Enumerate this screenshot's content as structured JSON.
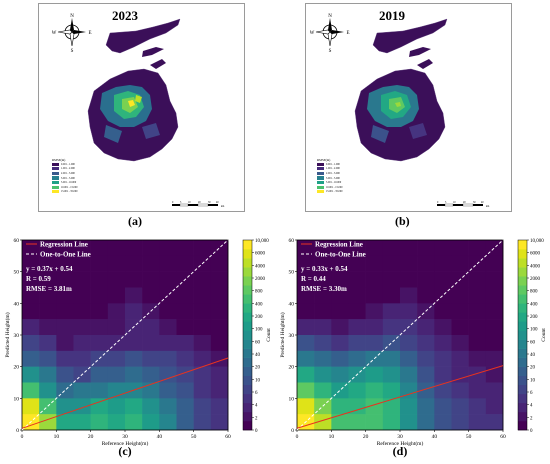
{
  "maps": [
    {
      "year": "2023",
      "label": "(a)",
      "legend_title": "RMSE(m)",
      "legend_items": [
        "0.001 - 1.000",
        "1.001 - 2.000",
        "2.001 - 3.000",
        "3.001 - 5.000",
        "5.001 - 10.000",
        "10.001 - 15.000",
        "15.001 - 35.000"
      ],
      "legend_colors": [
        "#3b0f59",
        "#452a7a",
        "#3a5a8c",
        "#27808e",
        "#1fa187",
        "#4ac16d",
        "#fde725"
      ],
      "scalebar_ticks": [
        "0",
        "5",
        "10",
        "20",
        "30",
        "40"
      ],
      "scalebar_unit": "km"
    },
    {
      "year": "2019",
      "label": "(b)",
      "legend_title": "RMSE(m)",
      "legend_items": [
        "0.001 - 1.000",
        "1.001 - 2.000",
        "2.001 - 3.000",
        "3.001 - 5.000",
        "5.001 - 10.000",
        "10.001 - 15.000",
        "15.001 - 35.000"
      ],
      "legend_colors": [
        "#3b0f59",
        "#452a7a",
        "#3a5a8c",
        "#27808e",
        "#1fa187",
        "#4ac16d",
        "#fde725"
      ],
      "scalebar_ticks": [
        "0",
        "5",
        "10",
        "20",
        "30",
        "40"
      ],
      "scalebar_unit": "km"
    }
  ],
  "compass": {
    "n": "N",
    "s": "S",
    "e": "E",
    "w": "W"
  },
  "colorbar": {
    "label": "Count",
    "ticks": [
      "10,000",
      "6000",
      "4000",
      "2000",
      "800",
      "400",
      "200",
      "100",
      "60",
      "40",
      "20",
      "10",
      "6",
      "4",
      "2",
      "0"
    ],
    "colors": [
      "#440154",
      "#471365",
      "#482475",
      "#463480",
      "#414487",
      "#3b528b",
      "#355f8d",
      "#2f6c8e",
      "#2a788e",
      "#25858e",
      "#21918c",
      "#1e9c89",
      "#22a884",
      "#2fb47c",
      "#44bf70",
      "#5ec962",
      "#7ad151",
      "#9bd93c",
      "#bddf26",
      "#dfe318",
      "#fde725"
    ]
  },
  "chart_data": [
    {
      "type": "heatmap",
      "panel_label": "(c)",
      "xlabel": "Reference Height(m)",
      "ylabel": "Predicted Height(m)",
      "xlim": [
        0,
        60
      ],
      "ylim": [
        0,
        60
      ],
      "xticks": [
        "0",
        "10",
        "20",
        "30",
        "40",
        "50",
        "60"
      ],
      "yticks": [
        "0",
        "10",
        "20",
        "30",
        "40",
        "50",
        "60"
      ],
      "legend": [
        "Regression Line",
        "One-to-One Line"
      ],
      "regression": {
        "slope": 0.37,
        "intercept": 0.54
      },
      "annotations": [
        "y = 0.37x + 0.54",
        "R = 0.59",
        "RMSE = 3.81m"
      ],
      "bin_size": 5,
      "grid_levels": [
        [
          0,
          0,
          0,
          0,
          0,
          0,
          0,
          0,
          0,
          0,
          0,
          0
        ],
        [
          0,
          0,
          0,
          0,
          0,
          0,
          0,
          0,
          0,
          0,
          0,
          0
        ],
        [
          0,
          0,
          0,
          0,
          0,
          0,
          0,
          0,
          0,
          0,
          0,
          0
        ],
        [
          0,
          0,
          0,
          0,
          0,
          0,
          1,
          0,
          0,
          0,
          0,
          0
        ],
        [
          0,
          0,
          0,
          0,
          0,
          1,
          2,
          1,
          0,
          0,
          0,
          0
        ],
        [
          2,
          1,
          1,
          1,
          1,
          1,
          2,
          2,
          1,
          0,
          0,
          0
        ],
        [
          4,
          3,
          1,
          2,
          2,
          2,
          2,
          2,
          2,
          2,
          1,
          0
        ],
        [
          6,
          5,
          3,
          3,
          4,
          4,
          5,
          4,
          4,
          3,
          2,
          1
        ],
        [
          10,
          8,
          5,
          4,
          6,
          6,
          7,
          6,
          5,
          4,
          3,
          2
        ],
        [
          14,
          10,
          7,
          8,
          8,
          9,
          9,
          8,
          6,
          5,
          3,
          2
        ],
        [
          19,
          14,
          10,
          10,
          12,
          11,
          12,
          10,
          8,
          6,
          4,
          3
        ],
        [
          20,
          17,
          12,
          12,
          13,
          12,
          13,
          11,
          9,
          6,
          4,
          3
        ]
      ]
    },
    {
      "type": "heatmap",
      "panel_label": "(d)",
      "xlabel": "Reference Height(m)",
      "ylabel": "Predicted Height(m)",
      "xlim": [
        0,
        60
      ],
      "ylim": [
        0,
        60
      ],
      "xticks": [
        "0",
        "10",
        "20",
        "30",
        "40",
        "50",
        "60"
      ],
      "yticks": [
        "0",
        "10",
        "20",
        "30",
        "40",
        "50",
        "60"
      ],
      "legend": [
        "Regression Line",
        "One-to-One Line"
      ],
      "regression": {
        "slope": 0.33,
        "intercept": 0.54
      },
      "annotations": [
        "y = 0.33x + 0.54",
        "R = 0.44",
        "RMSE = 3.30m"
      ],
      "bin_size": 5,
      "grid_levels": [
        [
          0,
          0,
          0,
          0,
          0,
          0,
          0,
          0,
          0,
          0,
          0,
          0
        ],
        [
          0,
          0,
          0,
          0,
          0,
          0,
          0,
          0,
          0,
          0,
          0,
          0
        ],
        [
          0,
          0,
          0,
          0,
          0,
          0,
          0,
          0,
          0,
          0,
          0,
          0
        ],
        [
          0,
          0,
          0,
          0,
          0,
          0,
          1,
          0,
          0,
          0,
          0,
          0
        ],
        [
          0,
          0,
          0,
          0,
          1,
          2,
          2,
          1,
          0,
          0,
          0,
          0
        ],
        [
          2,
          2,
          1,
          2,
          2,
          3,
          3,
          2,
          1,
          0,
          0,
          0
        ],
        [
          5,
          4,
          3,
          4,
          4,
          5,
          4,
          3,
          2,
          1,
          0,
          0
        ],
        [
          8,
          7,
          6,
          7,
          8,
          8,
          6,
          4,
          3,
          2,
          1,
          1
        ],
        [
          12,
          10,
          9,
          10,
          11,
          10,
          8,
          5,
          3,
          2,
          2,
          1
        ],
        [
          15,
          13,
          11,
          12,
          13,
          12,
          9,
          6,
          4,
          3,
          2,
          2
        ],
        [
          19,
          16,
          13,
          13,
          14,
          13,
          10,
          7,
          5,
          4,
          3,
          2
        ],
        [
          20,
          18,
          14,
          14,
          14,
          13,
          10,
          7,
          5,
          4,
          3,
          3
        ]
      ]
    }
  ]
}
